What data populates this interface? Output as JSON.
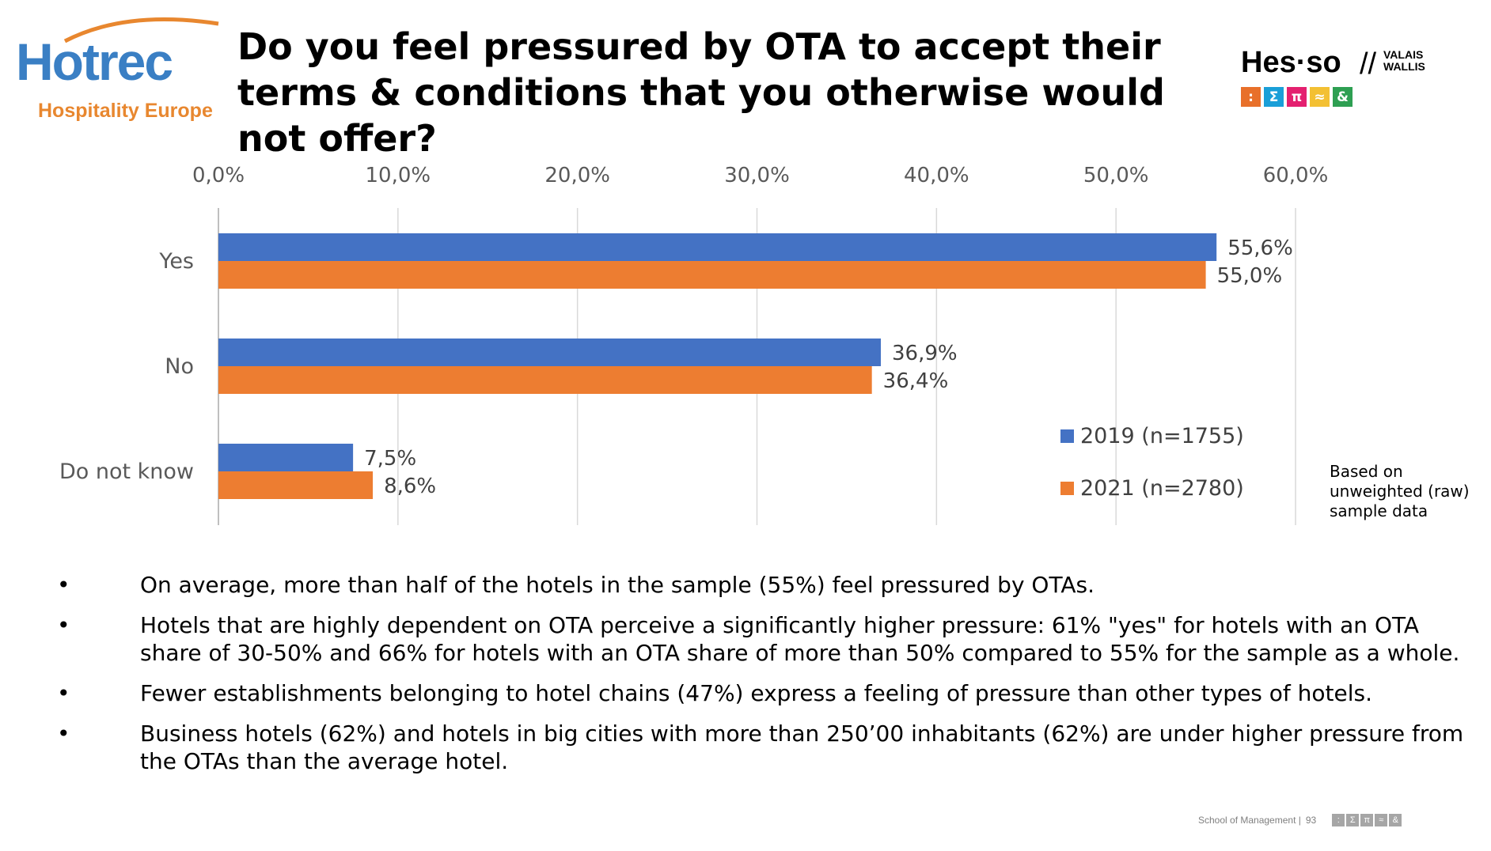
{
  "header": {
    "logo_name": "Hotrec",
    "logo_sub": "Hospitality Europe",
    "title": "Do you feel pressured by OTA to accept their terms & conditions that you otherwise would not offer?",
    "partner_logo": "Hes·so",
    "partner_region": "VALAIS WALLIS",
    "partner_badges": [
      ":",
      "Σ",
      "π",
      "≈",
      "&"
    ],
    "badge_colors": [
      "#e8702a",
      "#1a9fd8",
      "#e4206f",
      "#f3c033",
      "#2e9f52"
    ]
  },
  "chart_data": {
    "type": "bar",
    "orientation": "horizontal",
    "categories": [
      "Yes",
      "No",
      "Do not know"
    ],
    "series": [
      {
        "name": "2019 (n=1755)",
        "values": [
          55.6,
          36.9,
          7.5
        ],
        "labels": [
          "55,6%",
          "36,9%",
          "7,5%"
        ],
        "color": "#4472c4"
      },
      {
        "name": "2021 (n=2780)",
        "values": [
          55.0,
          36.4,
          8.6
        ],
        "labels": [
          "55,0%",
          "36,4%",
          "8,6%"
        ],
        "color": "#ed7d31"
      }
    ],
    "xlim": [
      0,
      60
    ],
    "xticks": [
      0,
      10,
      20,
      30,
      40,
      50,
      60
    ],
    "xtick_labels": [
      "0,0%",
      "10,0%",
      "20,0%",
      "30,0%",
      "40,0%",
      "50,0%",
      "60,0%"
    ],
    "grid": true,
    "legend_position": "bottom-right",
    "note": [
      "Based on",
      "unweighted (raw)",
      "sample data"
    ]
  },
  "bullets": [
    "On average, more than half of the hotels in the sample (55%) feel pressured by OTAs.",
    "Hotels that are highly dependent on OTA perceive a significantly higher pressure: 61% \"yes\" for hotels with an OTA share of 30-50% and 66% for hotels with an OTA share of more than 50% compared to 55% for the sample as a whole.",
    "Fewer establishments belonging to hotel chains (47%) express a feeling of pressure than other types of hotels.",
    "Business hotels (62%) and hotels in big cities with more than 250’00 inhabitants (62%) are under higher pressure from the OTAs than the average hotel."
  ],
  "bullet_marker": "•",
  "footer": {
    "text": "School of Management |",
    "page": "93",
    "badges": [
      ":",
      "Σ",
      "π",
      "≈",
      "&"
    ]
  }
}
